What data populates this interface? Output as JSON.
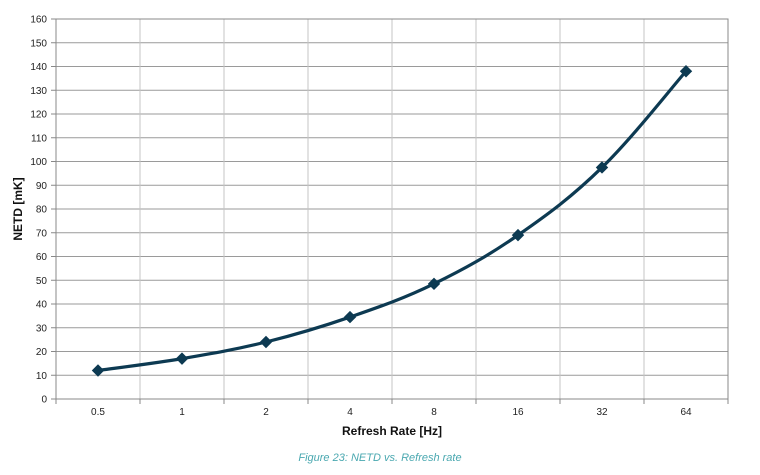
{
  "caption": "Figure 23: NETD vs. Refresh rate",
  "chart_data": {
    "type": "line",
    "title": "",
    "xlabel": "Refresh Rate [Hz]",
    "ylabel": "NETD [mK]",
    "categories": [
      "0.5",
      "1",
      "2",
      "4",
      "8",
      "16",
      "32",
      "64"
    ],
    "series": [
      {
        "values": [
          12,
          17,
          24,
          34.5,
          48.5,
          69,
          97.5,
          138
        ]
      }
    ],
    "ylim": [
      0,
      160
    ],
    "ytick_step": 10,
    "grid": true,
    "legend": "none",
    "marker": "diamond",
    "line_color": "#0d3a52"
  }
}
